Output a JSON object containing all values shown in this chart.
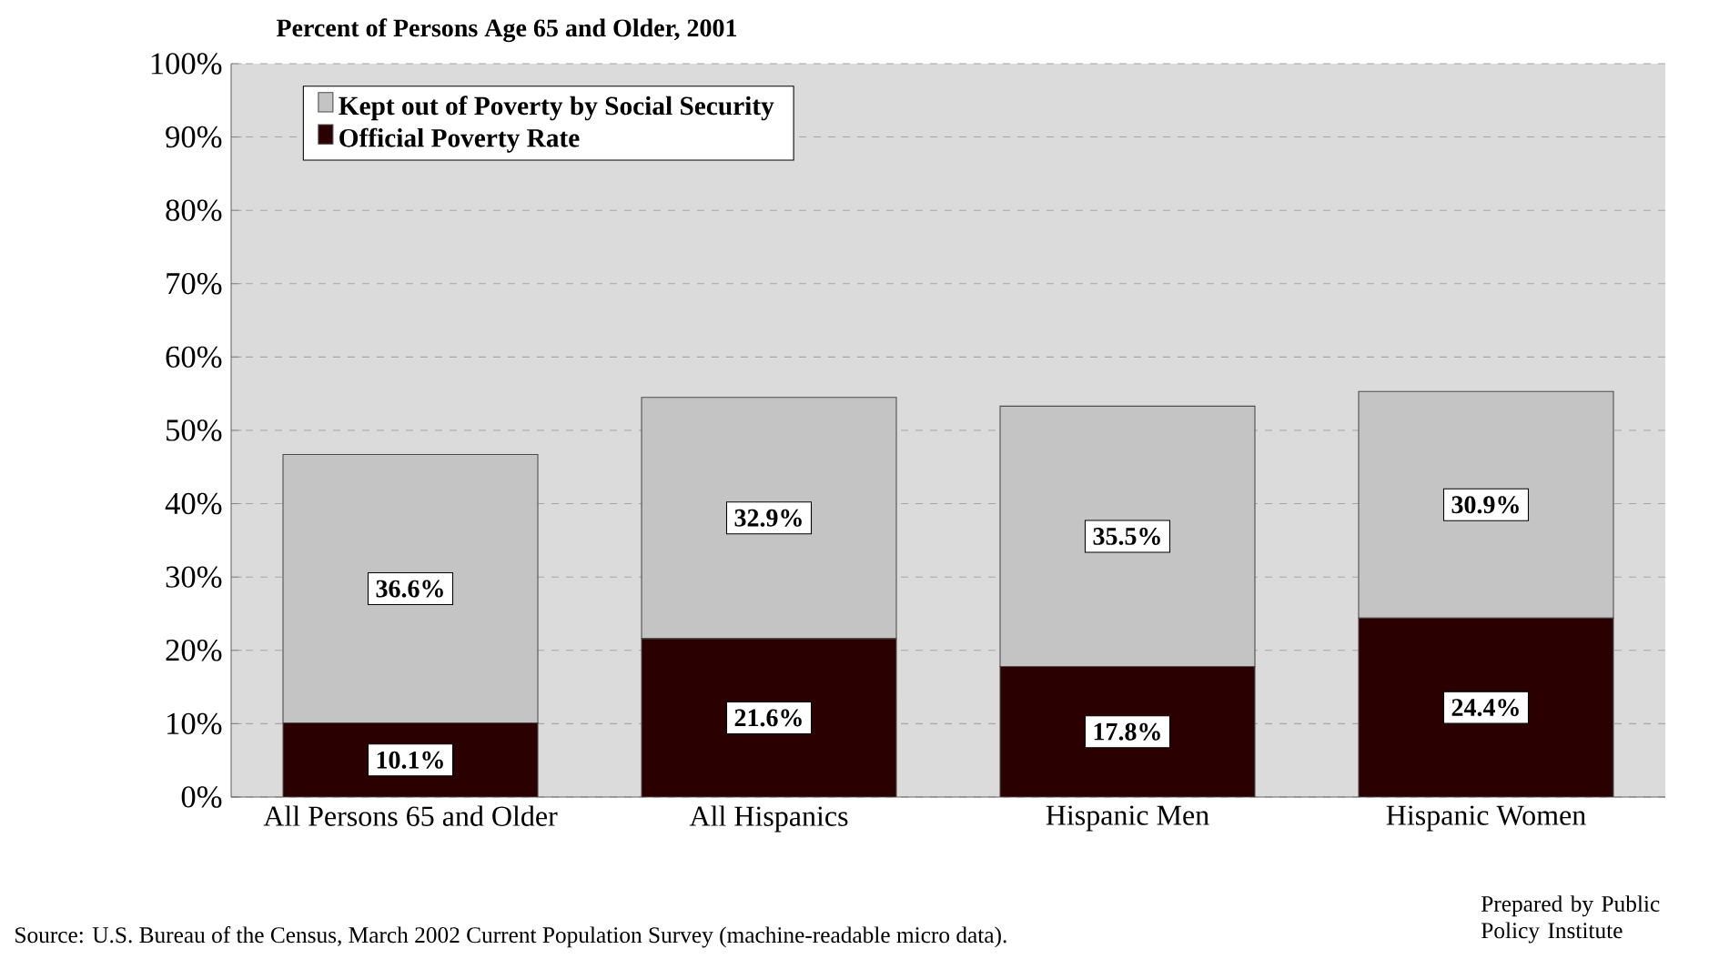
{
  "chart_data": {
    "type": "bar",
    "stacked": true,
    "title": "Percent of Persons Age 65 and Older, 2001",
    "categories": [
      "All Persons 65 and Older",
      "All Hispanics",
      "Hispanic Men",
      "Hispanic Women"
    ],
    "series": [
      {
        "name": "Official Poverty Rate",
        "color": "#2a0000",
        "values": [
          10.1,
          21.6,
          17.8,
          24.4
        ],
        "value_labels": [
          "10.1%",
          "21.6%",
          "17.8%",
          "24.4%"
        ]
      },
      {
        "name": "Kept out of Poverty by Social Security",
        "color": "#c4c4c4",
        "values": [
          36.6,
          32.9,
          35.5,
          30.9
        ],
        "value_labels": [
          "36.6%",
          "32.9%",
          "35.5%",
          "30.9%"
        ]
      }
    ],
    "ylim": [
      0,
      100
    ],
    "yticks": [
      {
        "value": 0,
        "label": "0%"
      },
      {
        "value": 10,
        "label": "10%"
      },
      {
        "value": 20,
        "label": "20%"
      },
      {
        "value": 30,
        "label": "30%"
      },
      {
        "value": 40,
        "label": "40%"
      },
      {
        "value": 50,
        "label": "50%"
      },
      {
        "value": 60,
        "label": "60%"
      },
      {
        "value": 70,
        "label": "70%"
      },
      {
        "value": 80,
        "label": "80%"
      },
      {
        "value": 90,
        "label": "90%"
      },
      {
        "value": 100,
        "label": "100%"
      }
    ],
    "grid": "y",
    "legend": "top left",
    "annotations": [
      "Source: U.S. Bureau of the Census, March 2002 Current Population Survey (machine-readable micro data).",
      "Prepared  by Public Policy Institute"
    ]
  }
}
